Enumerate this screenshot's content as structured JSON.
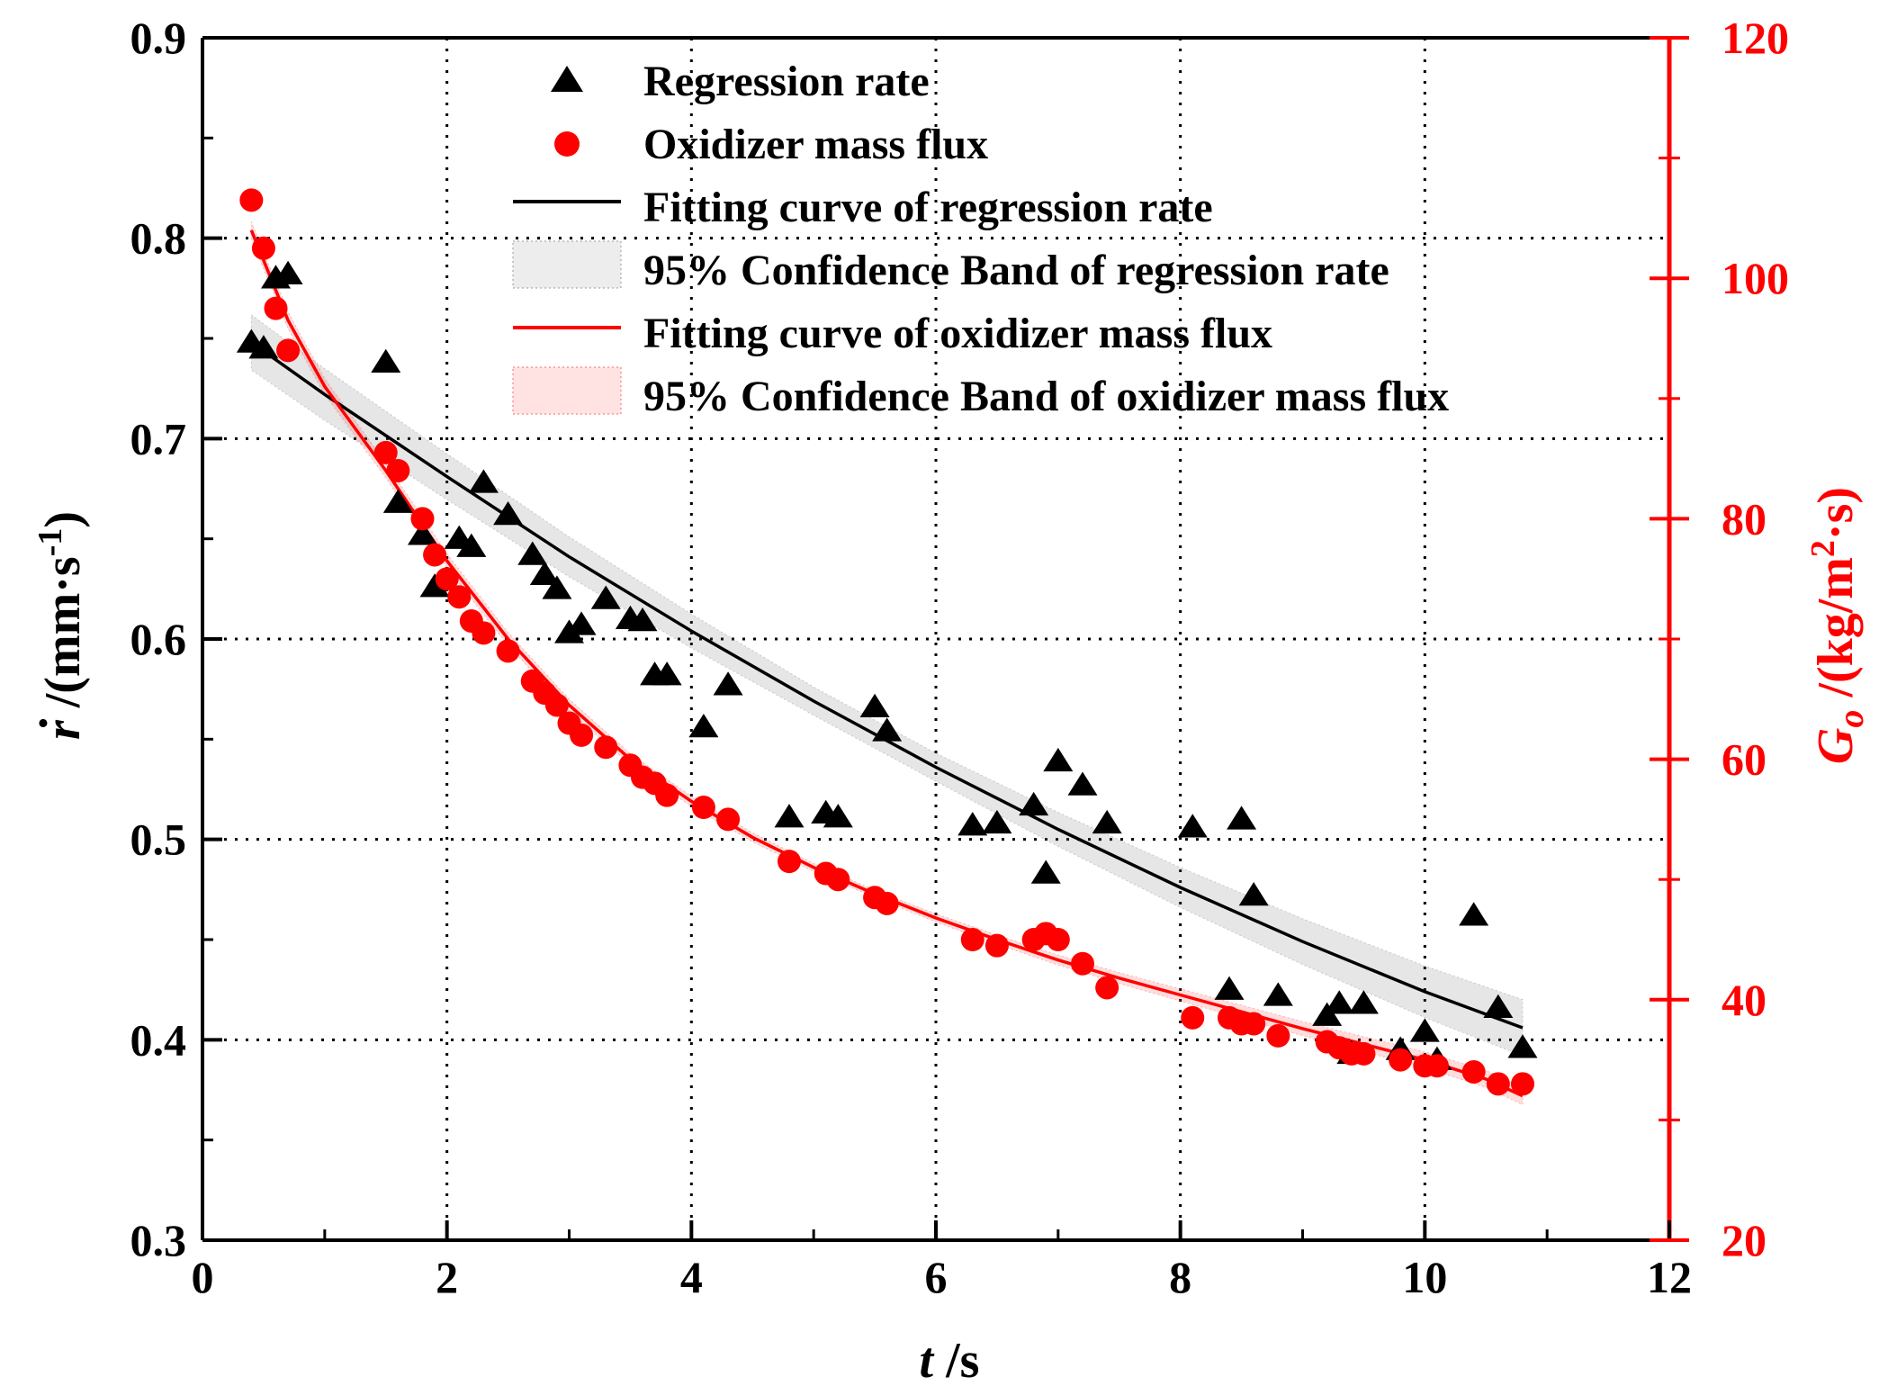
{
  "chart_data": {
    "type": "scatter",
    "x_axis": {
      "label_italic": "t",
      "label_rest": " /s",
      "range": [
        0,
        12
      ],
      "ticks": [
        0,
        2,
        4,
        6,
        8,
        10,
        12
      ]
    },
    "y_left": {
      "label_symbol": "r",
      "label_rest": " /(mm·s",
      "label_sup": "-1",
      "label_close": ")",
      "range": [
        0.3,
        0.9
      ],
      "ticks": [
        "0.3",
        "0.4",
        "0.5",
        "0.6",
        "0.7",
        "0.8",
        "0.9"
      ],
      "color": "#000000"
    },
    "y_right": {
      "label_symbol": "G",
      "label_sub": "o",
      "label_rest": " /(kg/m",
      "label_sup": "2",
      "label_close": "·s)",
      "range": [
        20,
        120
      ],
      "ticks": [
        "20",
        "40",
        "60",
        "80",
        "100",
        "120"
      ],
      "color": "#ff0000"
    },
    "grid": "dotted",
    "legend_position": "top-center",
    "legend": [
      {
        "label": "Regression rate",
        "kind": "triangle"
      },
      {
        "label": "Oxidizer mass flux",
        "kind": "circle"
      },
      {
        "label": "Fitting curve of regression rate",
        "kind": "line-black"
      },
      {
        "label": "95% Confidence Band of regression rate",
        "kind": "band-black"
      },
      {
        "label": "Fitting curve of oxidizer mass flux",
        "kind": "line-red"
      },
      {
        "label": "95% Confidence Band of oxidizer mass flux",
        "kind": "band-red"
      }
    ],
    "series": [
      {
        "name": "Regression rate",
        "axis": "left",
        "marker": "triangle",
        "color": "#000000",
        "points": [
          [
            0.4,
            0.748
          ],
          [
            0.5,
            0.745
          ],
          [
            0.6,
            0.78
          ],
          [
            0.7,
            0.782
          ],
          [
            1.5,
            0.738
          ],
          [
            1.6,
            0.668
          ],
          [
            1.8,
            0.652
          ],
          [
            1.9,
            0.626
          ],
          [
            2.1,
            0.65
          ],
          [
            2.2,
            0.646
          ],
          [
            2.3,
            0.678
          ],
          [
            2.5,
            0.662
          ],
          [
            2.7,
            0.642
          ],
          [
            2.8,
            0.632
          ],
          [
            2.9,
            0.625
          ],
          [
            3.0,
            0.603
          ],
          [
            3.1,
            0.607
          ],
          [
            3.3,
            0.62
          ],
          [
            3.5,
            0.61
          ],
          [
            3.6,
            0.609
          ],
          [
            3.7,
            0.582
          ],
          [
            3.8,
            0.582
          ],
          [
            4.1,
            0.556
          ],
          [
            4.3,
            0.577
          ],
          [
            4.8,
            0.511
          ],
          [
            5.1,
            0.513
          ],
          [
            5.2,
            0.511
          ],
          [
            5.5,
            0.566
          ],
          [
            5.6,
            0.554
          ],
          [
            6.3,
            0.507
          ],
          [
            6.5,
            0.508
          ],
          [
            6.8,
            0.517
          ],
          [
            6.9,
            0.483
          ],
          [
            7.0,
            0.539
          ],
          [
            7.2,
            0.527
          ],
          [
            7.4,
            0.508
          ],
          [
            8.1,
            0.506
          ],
          [
            8.4,
            0.425
          ],
          [
            8.5,
            0.51
          ],
          [
            8.6,
            0.472
          ],
          [
            8.8,
            0.422
          ],
          [
            9.2,
            0.412
          ],
          [
            9.3,
            0.418
          ],
          [
            9.4,
            0.393
          ],
          [
            9.5,
            0.418
          ],
          [
            9.8,
            0.395
          ],
          [
            10.0,
            0.404
          ],
          [
            10.1,
            0.39
          ],
          [
            10.4,
            0.462
          ],
          [
            10.6,
            0.416
          ],
          [
            10.8,
            0.396
          ]
        ]
      },
      {
        "name": "Oxidizer mass flux",
        "axis": "right",
        "marker": "circle",
        "color": "#ff0000",
        "points": [
          [
            0.4,
            106.5
          ],
          [
            0.5,
            102.5
          ],
          [
            0.6,
            97.5
          ],
          [
            0.7,
            94.0
          ],
          [
            1.5,
            85.5
          ],
          [
            1.6,
            84.0
          ],
          [
            1.8,
            80.0
          ],
          [
            1.9,
            77.0
          ],
          [
            2.0,
            75.0
          ],
          [
            2.1,
            73.5
          ],
          [
            2.2,
            71.5
          ],
          [
            2.3,
            70.5
          ],
          [
            2.5,
            69.0
          ],
          [
            2.7,
            66.5
          ],
          [
            2.8,
            65.5
          ],
          [
            2.9,
            64.5
          ],
          [
            3.0,
            63.0
          ],
          [
            3.1,
            62.0
          ],
          [
            3.3,
            61.0
          ],
          [
            3.5,
            59.5
          ],
          [
            3.6,
            58.5
          ],
          [
            3.7,
            58.0
          ],
          [
            3.8,
            57.0
          ],
          [
            4.1,
            56.0
          ],
          [
            4.3,
            55.0
          ],
          [
            4.8,
            51.5
          ],
          [
            5.1,
            50.5
          ],
          [
            5.2,
            50.0
          ],
          [
            5.5,
            48.5
          ],
          [
            5.6,
            48.0
          ],
          [
            6.3,
            45.0
          ],
          [
            6.5,
            44.5
          ],
          [
            6.8,
            45.0
          ],
          [
            6.9,
            45.5
          ],
          [
            7.0,
            45.0
          ],
          [
            7.2,
            43.0
          ],
          [
            7.4,
            41.0
          ],
          [
            8.1,
            38.5
          ],
          [
            8.4,
            38.5
          ],
          [
            8.5,
            38.0
          ],
          [
            8.6,
            38.0
          ],
          [
            8.8,
            37.0
          ],
          [
            9.2,
            36.5
          ],
          [
            9.3,
            36.0
          ],
          [
            9.4,
            35.5
          ],
          [
            9.5,
            35.5
          ],
          [
            9.8,
            35.0
          ],
          [
            10.0,
            34.5
          ],
          [
            10.1,
            34.5
          ],
          [
            10.4,
            34.0
          ],
          [
            10.6,
            33.0
          ],
          [
            10.8,
            33.0
          ]
        ]
      },
      {
        "name": "Fitting curve of regression rate",
        "axis": "left",
        "kind": "line",
        "color": "#000000",
        "points": [
          [
            0.4,
            0.748
          ],
          [
            1.0,
            0.722
          ],
          [
            2.0,
            0.681
          ],
          [
            3.0,
            0.641
          ],
          [
            4.0,
            0.604
          ],
          [
            5.0,
            0.569
          ],
          [
            6.0,
            0.536
          ],
          [
            7.0,
            0.505
          ],
          [
            8.0,
            0.476
          ],
          [
            9.0,
            0.449
          ],
          [
            10.0,
            0.424
          ],
          [
            10.8,
            0.406
          ]
        ]
      },
      {
        "name": "Fitting curve of oxidizer mass flux",
        "axis": "right",
        "kind": "line",
        "color": "#ff0000",
        "points": [
          [
            0.4,
            104.0
          ],
          [
            0.7,
            96.5
          ],
          [
            1.0,
            91.0
          ],
          [
            1.5,
            84.0
          ],
          [
            2.0,
            76.5
          ],
          [
            2.5,
            70.0
          ],
          [
            3.0,
            64.5
          ],
          [
            3.5,
            60.0
          ],
          [
            4.0,
            56.5
          ],
          [
            4.5,
            53.5
          ],
          [
            5.0,
            51.0
          ],
          [
            5.5,
            48.8
          ],
          [
            6.0,
            46.8
          ],
          [
            6.5,
            45.0
          ],
          [
            7.0,
            43.3
          ],
          [
            7.5,
            41.8
          ],
          [
            8.0,
            40.4
          ],
          [
            8.5,
            39.0
          ],
          [
            9.0,
            37.6
          ],
          [
            9.5,
            36.3
          ],
          [
            10.0,
            35.0
          ],
          [
            10.5,
            33.4
          ],
          [
            10.8,
            32.0
          ]
        ]
      }
    ]
  }
}
